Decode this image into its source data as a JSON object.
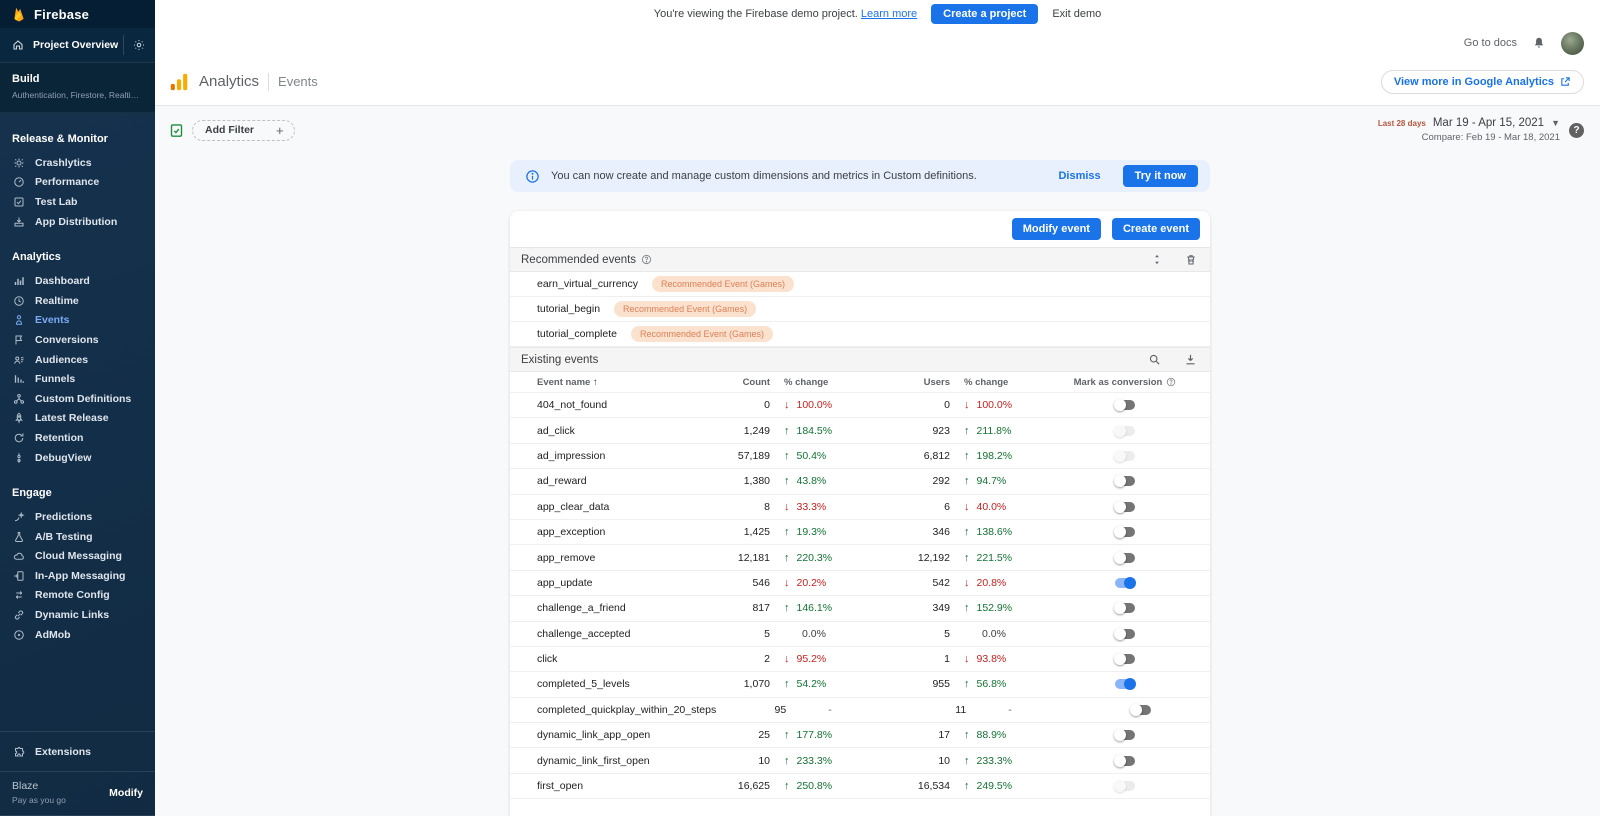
{
  "colors": {
    "accent_blue": "#1a73e8",
    "positive_green": "#137333",
    "negative_red": "#c5221f",
    "badge_bg": "#fae2cf",
    "badge_text": "#e07f56",
    "sidebar_bg": "#14304b",
    "active_item": "#7baaf7"
  },
  "topbar": {
    "demo_text": "You're viewing the Firebase demo project.",
    "learn_more": "Learn more",
    "create_project": "Create a project",
    "exit_demo": "Exit demo"
  },
  "sidebar": {
    "brand": "Firebase",
    "project_overview": "Project Overview",
    "build": {
      "title": "Build",
      "subtitle": "Authentication, Firestore, Realtime ..."
    },
    "sections": [
      {
        "label": "Release & Monitor",
        "items": [
          {
            "icon": "crashlytics",
            "label": "Crashlytics",
            "active": false
          },
          {
            "icon": "performance",
            "label": "Performance",
            "active": false
          },
          {
            "icon": "test-lab",
            "label": "Test Lab",
            "active": false
          },
          {
            "icon": "app-distribution",
            "label": "App Distribution",
            "active": false
          }
        ]
      },
      {
        "label": "Analytics",
        "items": [
          {
            "icon": "dashboard",
            "label": "Dashboard",
            "active": false
          },
          {
            "icon": "realtime",
            "label": "Realtime",
            "active": false
          },
          {
            "icon": "events",
            "label": "Events",
            "active": true
          },
          {
            "icon": "conversions",
            "label": "Conversions",
            "active": false
          },
          {
            "icon": "audiences",
            "label": "Audiences",
            "active": false
          },
          {
            "icon": "funnels",
            "label": "Funnels",
            "active": false
          },
          {
            "icon": "custom-definitions",
            "label": "Custom Definitions",
            "active": false
          },
          {
            "icon": "latest-release",
            "label": "Latest Release",
            "active": false
          },
          {
            "icon": "retention",
            "label": "Retention",
            "active": false
          },
          {
            "icon": "debugview",
            "label": "DebugView",
            "active": false
          }
        ]
      },
      {
        "label": "Engage",
        "items": [
          {
            "icon": "predictions",
            "label": "Predictions",
            "active": false
          },
          {
            "icon": "ab-testing",
            "label": "A/B Testing",
            "active": false
          },
          {
            "icon": "cloud-messaging",
            "label": "Cloud Messaging",
            "active": false
          },
          {
            "icon": "in-app-messaging",
            "label": "In-App Messaging",
            "active": false
          },
          {
            "icon": "remote-config",
            "label": "Remote Config",
            "active": false
          },
          {
            "icon": "dynamic-links",
            "label": "Dynamic Links",
            "active": false
          },
          {
            "icon": "admob",
            "label": "AdMob",
            "active": false
          }
        ]
      }
    ],
    "extensions": "Extensions",
    "plan": {
      "name": "Blaze",
      "type": "Pay as you go",
      "action": "Modify"
    }
  },
  "header": {
    "go_to_docs": "Go to docs",
    "product": "Analytics",
    "page": "Events",
    "view_more": "View more in Google Analytics"
  },
  "filter": {
    "add_filter": "Add Filter"
  },
  "daterange": {
    "preset": "Last 28 days",
    "range": "Mar 19 - Apr 15, 2021",
    "compare": "Compare: Feb 19 - Mar 18, 2021"
  },
  "banner": {
    "text": "You can now create and manage custom dimensions and metrics in Custom definitions.",
    "dismiss": "Dismiss",
    "try_now": "Try it now"
  },
  "events_card": {
    "modify_event": "Modify event",
    "create_event": "Create event",
    "recommended": {
      "title": "Recommended events",
      "rows": [
        {
          "name": "earn_virtual_currency",
          "badge": "Recommended Event (Games)"
        },
        {
          "name": "tutorial_begin",
          "badge": "Recommended Event (Games)"
        },
        {
          "name": "tutorial_complete",
          "badge": "Recommended Event (Games)"
        }
      ]
    },
    "existing": {
      "title": "Existing events",
      "columns": {
        "name": "Event name",
        "count": "Count",
        "change": "% change",
        "users": "Users",
        "users_change": "% change",
        "conversion": "Mark as conversion"
      },
      "rows": [
        {
          "name": "404_not_found",
          "count": "0",
          "change": "100.0%",
          "change_dir": "down",
          "users": "0",
          "users_change": "100.0%",
          "users_change_dir": "down",
          "toggle": "off"
        },
        {
          "name": "ad_click",
          "count": "1,249",
          "change": "184.5%",
          "change_dir": "up",
          "users": "923",
          "users_change": "211.8%",
          "users_change_dir": "up",
          "toggle": "disabled"
        },
        {
          "name": "ad_impression",
          "count": "57,189",
          "change": "50.4%",
          "change_dir": "up",
          "users": "6,812",
          "users_change": "198.2%",
          "users_change_dir": "up",
          "toggle": "disabled"
        },
        {
          "name": "ad_reward",
          "count": "1,380",
          "change": "43.8%",
          "change_dir": "up",
          "users": "292",
          "users_change": "94.7%",
          "users_change_dir": "up",
          "toggle": "off"
        },
        {
          "name": "app_clear_data",
          "count": "8",
          "change": "33.3%",
          "change_dir": "down",
          "users": "6",
          "users_change": "40.0%",
          "users_change_dir": "down",
          "toggle": "off"
        },
        {
          "name": "app_exception",
          "count": "1,425",
          "change": "19.3%",
          "change_dir": "up",
          "users": "346",
          "users_change": "138.6%",
          "users_change_dir": "up",
          "toggle": "off"
        },
        {
          "name": "app_remove",
          "count": "12,181",
          "change": "220.3%",
          "change_dir": "up",
          "users": "12,192",
          "users_change": "221.5%",
          "users_change_dir": "up",
          "toggle": "off"
        },
        {
          "name": "app_update",
          "count": "546",
          "change": "20.2%",
          "change_dir": "down",
          "users": "542",
          "users_change": "20.8%",
          "users_change_dir": "down",
          "toggle": "on"
        },
        {
          "name": "challenge_a_friend",
          "count": "817",
          "change": "146.1%",
          "change_dir": "up",
          "users": "349",
          "users_change": "152.9%",
          "users_change_dir": "up",
          "toggle": "off"
        },
        {
          "name": "challenge_accepted",
          "count": "5",
          "change": "0.0%",
          "change_dir": "flat",
          "users": "5",
          "users_change": "0.0%",
          "users_change_dir": "flat",
          "toggle": "off"
        },
        {
          "name": "click",
          "count": "2",
          "change": "95.2%",
          "change_dir": "down",
          "users": "1",
          "users_change": "93.8%",
          "users_change_dir": "down",
          "toggle": "off"
        },
        {
          "name": "completed_5_levels",
          "count": "1,070",
          "change": "54.2%",
          "change_dir": "up",
          "users": "955",
          "users_change": "56.8%",
          "users_change_dir": "up",
          "toggle": "on"
        },
        {
          "name": "completed_quickplay_within_20_steps",
          "count": "95",
          "change": "-",
          "change_dir": "none",
          "users": "11",
          "users_change": "-",
          "users_change_dir": "none",
          "toggle": "off"
        },
        {
          "name": "dynamic_link_app_open",
          "count": "25",
          "change": "177.8%",
          "change_dir": "up",
          "users": "17",
          "users_change": "88.9%",
          "users_change_dir": "up",
          "toggle": "off"
        },
        {
          "name": "dynamic_link_first_open",
          "count": "10",
          "change": "233.3%",
          "change_dir": "up",
          "users": "10",
          "users_change": "233.3%",
          "users_change_dir": "up",
          "toggle": "off"
        },
        {
          "name": "first_open",
          "count": "16,625",
          "change": "250.8%",
          "change_dir": "up",
          "users": "16,534",
          "users_change": "249.5%",
          "users_change_dir": "up",
          "toggle": "disabled"
        }
      ]
    }
  }
}
